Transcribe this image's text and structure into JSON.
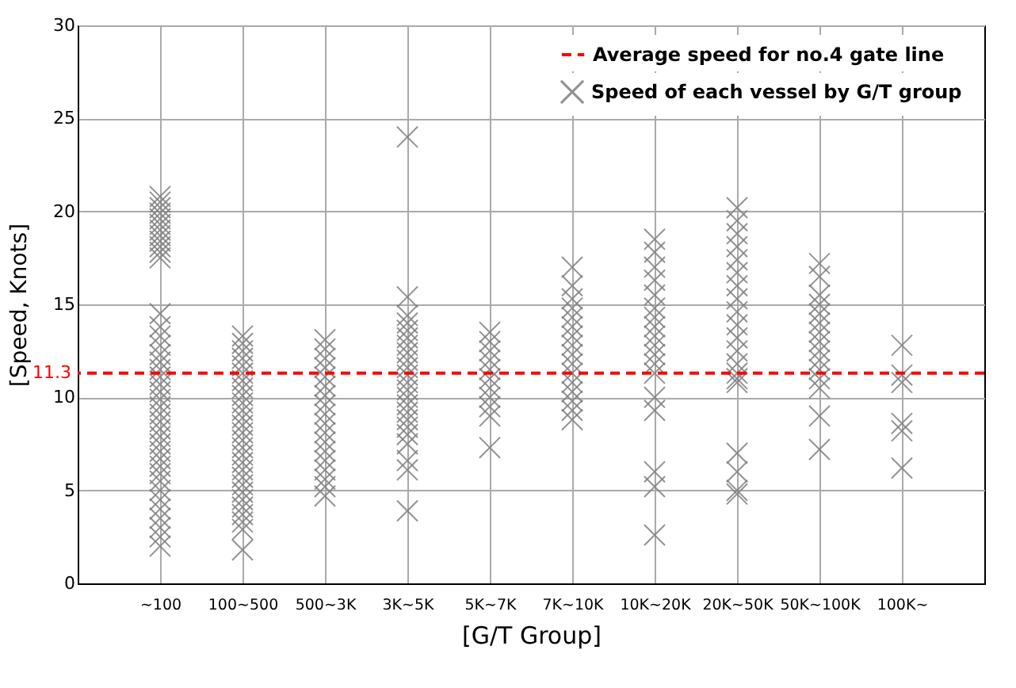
{
  "chart_data": {
    "type": "scatter",
    "xlabel": "[G/T Group]",
    "ylabel": "[Speed, Knots]",
    "categories": [
      "~100",
      "100~500",
      "500~3K",
      "3K~5K",
      "5K~7K",
      "7K~10K",
      "10K~20K",
      "20K~50K",
      "50K~100K",
      "100K~"
    ],
    "ylim": [
      0,
      30
    ],
    "yticks": [
      0,
      5,
      10,
      15,
      20,
      25,
      30
    ],
    "grid": true,
    "legend": "top right",
    "marker": "cross",
    "series": [
      {
        "name": "Speed of each vessel by G/T group",
        "color": "#808080",
        "x": [
          "~100",
          "~100",
          "~100",
          "~100",
          "~100",
          "~100",
          "~100",
          "~100",
          "~100",
          "~100",
          "~100",
          "~100",
          "~100",
          "~100",
          "~100",
          "~100",
          "~100",
          "~100",
          "~100",
          "~100",
          "~100",
          "~100",
          "~100",
          "~100",
          "~100",
          "~100",
          "~100",
          "~100",
          "~100",
          "~100",
          "~100",
          "~100",
          "~100",
          "~100",
          "~100",
          "~100",
          "~100",
          "~100",
          "~100",
          "~100",
          "~100",
          "100~500",
          "100~500",
          "100~500",
          "100~500",
          "100~500",
          "100~500",
          "100~500",
          "100~500",
          "100~500",
          "100~500",
          "100~500",
          "100~500",
          "100~500",
          "100~500",
          "100~500",
          "100~500",
          "100~500",
          "100~500",
          "100~500",
          "100~500",
          "100~500",
          "100~500",
          "100~500",
          "100~500",
          "100~500",
          "100~500",
          "100~500",
          "100~500",
          "500~3K",
          "500~3K",
          "500~3K",
          "500~3K",
          "500~3K",
          "500~3K",
          "500~3K",
          "500~3K",
          "500~3K",
          "500~3K",
          "500~3K",
          "500~3K",
          "500~3K",
          "500~3K",
          "500~3K",
          "500~3K",
          "500~3K",
          "500~3K",
          "3K~5K",
          "3K~5K",
          "3K~5K",
          "3K~5K",
          "3K~5K",
          "3K~5K",
          "3K~5K",
          "3K~5K",
          "3K~5K",
          "3K~5K",
          "3K~5K",
          "3K~5K",
          "3K~5K",
          "3K~5K",
          "3K~5K",
          "3K~5K",
          "3K~5K",
          "3K~5K",
          "3K~5K",
          "3K~5K",
          "3K~5K",
          "3K~5K",
          "3K~5K",
          "5K~7K",
          "5K~7K",
          "5K~7K",
          "5K~7K",
          "5K~7K",
          "5K~7K",
          "5K~7K",
          "5K~7K",
          "5K~7K",
          "5K~7K",
          "5K~7K",
          "7K~10K",
          "7K~10K",
          "7K~10K",
          "7K~10K",
          "7K~10K",
          "7K~10K",
          "7K~10K",
          "7K~10K",
          "7K~10K",
          "7K~10K",
          "7K~10K",
          "7K~10K",
          "7K~10K",
          "7K~10K",
          "7K~10K",
          "7K~10K",
          "10K~20K",
          "10K~20K",
          "10K~20K",
          "10K~20K",
          "10K~20K",
          "10K~20K",
          "10K~20K",
          "10K~20K",
          "10K~20K",
          "10K~20K",
          "10K~20K",
          "10K~20K",
          "10K~20K",
          "10K~20K",
          "10K~20K",
          "10K~20K",
          "10K~20K",
          "10K~20K",
          "20K~50K",
          "20K~50K",
          "20K~50K",
          "20K~50K",
          "20K~50K",
          "20K~50K",
          "20K~50K",
          "20K~50K",
          "20K~50K",
          "20K~50K",
          "20K~50K",
          "20K~50K",
          "20K~50K",
          "20K~50K",
          "20K~50K",
          "20K~50K",
          "20K~50K",
          "20K~50K",
          "20K~50K",
          "20K~50K",
          "50K~100K",
          "50K~100K",
          "50K~100K",
          "50K~100K",
          "50K~100K",
          "50K~100K",
          "50K~100K",
          "50K~100K",
          "50K~100K",
          "50K~100K",
          "50K~100K",
          "50K~100K",
          "50K~100K",
          "50K~100K",
          "50K~100K",
          "100K~",
          "100K~",
          "100K~",
          "100K~",
          "100K~",
          "100K~"
        ],
        "values": [
          20.8,
          20.5,
          20.2,
          19.9,
          19.6,
          19.3,
          19.0,
          18.7,
          18.4,
          18.1,
          17.8,
          17.5,
          14.5,
          13.8,
          13.3,
          12.8,
          12.3,
          11.9,
          11.5,
          11.1,
          10.7,
          10.3,
          9.9,
          9.5,
          9.1,
          8.7,
          8.3,
          7.9,
          7.5,
          7.1,
          6.7,
          6.3,
          5.9,
          5.5,
          5.0,
          4.5,
          4.0,
          3.5,
          3.0,
          2.5,
          2.0,
          13.3,
          12.9,
          12.5,
          12.1,
          11.7,
          11.3,
          10.9,
          10.5,
          10.1,
          9.7,
          9.3,
          8.9,
          8.5,
          8.1,
          7.7,
          7.3,
          6.9,
          6.5,
          6.1,
          5.7,
          5.3,
          4.9,
          4.5,
          4.1,
          3.7,
          3.3,
          2.9,
          1.8,
          13.1,
          12.6,
          12.1,
          11.6,
          11.1,
          10.6,
          10.1,
          9.6,
          9.1,
          8.6,
          8.1,
          7.6,
          7.1,
          6.6,
          6.1,
          5.6,
          5.2,
          4.7,
          24.0,
          15.4,
          14.4,
          14.0,
          13.6,
          13.2,
          12.8,
          12.4,
          12.0,
          11.6,
          11.2,
          10.8,
          10.4,
          10.0,
          9.6,
          9.2,
          8.8,
          8.4,
          8.0,
          7.5,
          6.6,
          6.1,
          3.9,
          13.5,
          13.0,
          12.5,
          12.0,
          11.5,
          11.0,
          10.5,
          10.0,
          9.5,
          9.0,
          7.3,
          17.0,
          16.0,
          15.3,
          14.8,
          14.3,
          13.8,
          13.3,
          12.8,
          12.3,
          11.8,
          11.3,
          10.8,
          10.3,
          9.8,
          9.3,
          8.8,
          18.5,
          17.8,
          17.0,
          16.3,
          15.5,
          14.8,
          14.3,
          13.8,
          13.3,
          12.8,
          12.3,
          11.8,
          11.3,
          10.0,
          9.3,
          6.0,
          5.2,
          2.6,
          20.2,
          19.5,
          18.8,
          18.1,
          17.4,
          16.7,
          16.0,
          15.3,
          14.6,
          13.9,
          13.2,
          12.5,
          11.8,
          11.3,
          11.0,
          10.8,
          7.0,
          6.0,
          5.0,
          4.8,
          17.2,
          16.5,
          15.5,
          15.0,
          14.5,
          14.0,
          13.5,
          13.0,
          12.5,
          12.0,
          11.5,
          11.0,
          10.5,
          9.0,
          7.2,
          12.8,
          11.2,
          10.8,
          8.6,
          8.2,
          6.2
        ]
      }
    ],
    "ref_lines": [
      {
        "axis": "y",
        "value": 11.3,
        "label": "Average speed for no.4 gate line",
        "color": "#ff0000",
        "line_style": "dashed"
      }
    ],
    "annotations": [
      "11.3"
    ]
  }
}
